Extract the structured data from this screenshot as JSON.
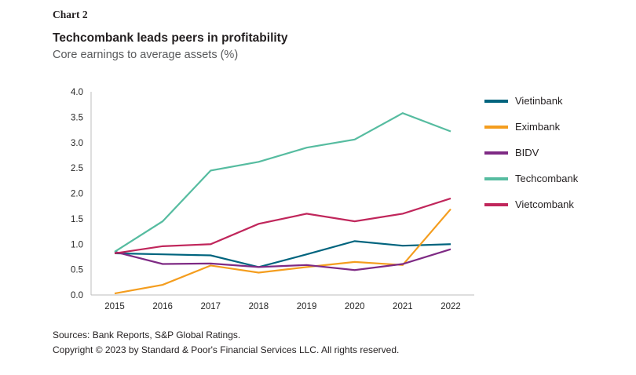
{
  "header": {
    "chart_label": "Chart 2",
    "title": "Techcombank leads peers in profitability",
    "subtitle": "Core earnings to average assets (%)"
  },
  "chart_data": {
    "type": "line",
    "title": "Techcombank leads peers in profitability",
    "subtitle": "Core earnings to average assets (%)",
    "x": [
      2015,
      2016,
      2017,
      2018,
      2019,
      2020,
      2021,
      2022
    ],
    "series": [
      {
        "name": "Vietinbank",
        "color": "#00647e",
        "values": [
          0.82,
          0.8,
          0.78,
          0.55,
          0.8,
          1.06,
          0.97,
          1.0
        ]
      },
      {
        "name": "Eximbank",
        "color": "#f49d1e",
        "values": [
          0.03,
          0.2,
          0.58,
          0.44,
          0.55,
          0.65,
          0.59,
          1.69
        ]
      },
      {
        "name": "BIDV",
        "color": "#7e2a84",
        "values": [
          0.85,
          0.61,
          0.62,
          0.55,
          0.59,
          0.49,
          0.61,
          0.9
        ]
      },
      {
        "name": "Techcombank",
        "color": "#56bca0",
        "values": [
          0.85,
          1.45,
          2.45,
          2.62,
          2.9,
          3.06,
          3.58,
          3.22
        ]
      },
      {
        "name": "Vietcombank",
        "color": "#c0265b",
        "values": [
          0.82,
          0.96,
          1.0,
          1.4,
          1.6,
          1.45,
          1.6,
          1.9
        ]
      }
    ],
    "ylim": [
      0.0,
      4.0
    ],
    "ytick_step": 0.5,
    "grid": false,
    "legend_position": "right",
    "axis_color": "#bdbdbd",
    "tick_label_color": "#262626"
  },
  "footer": {
    "sources": "Sources: Bank Reports, S&P Global Ratings.",
    "copyright": "Copyright © 2023 by Standard & Poor's Financial Services LLC. All rights reserved."
  }
}
